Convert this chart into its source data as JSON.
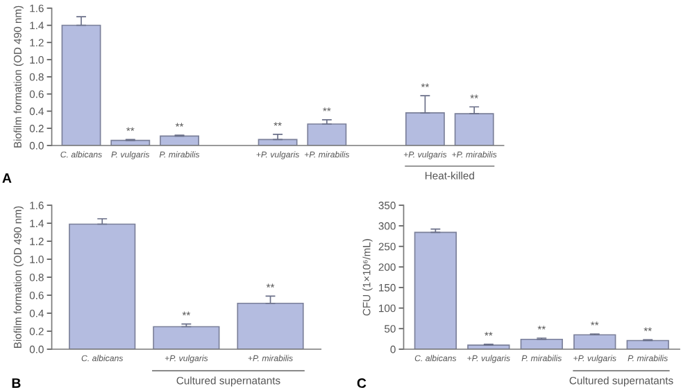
{
  "chart_data": [
    {
      "type": "bar",
      "ylabel": "Biofilm formation (OD 490 nm)",
      "categories": [
        "C. albicans",
        "P. vulgaris",
        "P. mirabilis",
        null,
        "+P. vulgaris",
        "+P. mirabilis",
        null,
        "+P. vulgaris",
        "+P. mirabilis"
      ],
      "color": "#b4bce0",
      "values": [
        1.4,
        0.06,
        0.11,
        null,
        0.07,
        0.25,
        null,
        0.38,
        0.37
      ],
      "errors": [
        0.1,
        0.01,
        0.01,
        null,
        0.06,
        0.05,
        null,
        0.2,
        0.08
      ],
      "value_labels": [
        null,
        "**",
        "**",
        null,
        "**",
        "**",
        null,
        "**",
        "**"
      ],
      "ylim": [
        0,
        1.6
      ],
      "yticks": [
        {
          "value": 0,
          "label": "0.0"
        },
        {
          "value": 0.2,
          "label": "0.2"
        },
        {
          "value": 0.4,
          "label": "0.4"
        },
        {
          "value": 0.6,
          "label": "0.6"
        },
        {
          "value": 0.8,
          "label": "0.8"
        },
        {
          "value": 1.0,
          "label": "1.0"
        },
        {
          "value": 1.2,
          "label": "1.2"
        },
        {
          "value": 1.4,
          "label": "1.4"
        },
        {
          "value": 1.6,
          "label": "1.6"
        }
      ],
      "grid": false,
      "legend": false,
      "annotations": [
        "A",
        "Heat-killed"
      ]
    },
    {
      "type": "bar",
      "ylabel": "Biofilm formation (OD 490 nm)",
      "categories": [
        "C. albicans",
        "+P. vulgaris",
        "+P. mirabilis"
      ],
      "color": "#b4bce0",
      "values": [
        1.39,
        0.25,
        0.51
      ],
      "errors": [
        0.06,
        0.03,
        0.08
      ],
      "value_labels": [
        null,
        "**",
        "**"
      ],
      "ylim": [
        0,
        1.6
      ],
      "yticks": [
        {
          "value": 0,
          "label": "0.0"
        },
        {
          "value": 0.2,
          "label": "0.2"
        },
        {
          "value": 0.4,
          "label": "0.4"
        },
        {
          "value": 0.6,
          "label": "0.6"
        },
        {
          "value": 0.8,
          "label": "0.8"
        },
        {
          "value": 1.0,
          "label": "1.0"
        },
        {
          "value": 1.2,
          "label": "1.2"
        },
        {
          "value": 1.4,
          "label": "1.4"
        },
        {
          "value": 1.6,
          "label": "1.6"
        }
      ],
      "grid": false,
      "legend": false,
      "annotations": [
        "B",
        "Cultured supernatants"
      ]
    },
    {
      "type": "bar",
      "ylabel": "CFU (1×10⁶/mL)",
      "categories": [
        "C. albicans",
        "+P. vulgaris",
        "P. mirabilis",
        "+P. vulgaris",
        "P. mirabilis"
      ],
      "color": "#b4bce0",
      "values": [
        284,
        10,
        24,
        35,
        21
      ],
      "errors": [
        8,
        2,
        3,
        2,
        2
      ],
      "value_labels": [
        null,
        "**",
        "**",
        "**",
        "**"
      ],
      "ylim": [
        0,
        350
      ],
      "yticks": [
        0,
        50,
        100,
        150,
        200,
        250,
        300,
        350
      ],
      "grid": false,
      "legend": false,
      "annotations": [
        "C",
        "Cultured supernatants"
      ]
    }
  ]
}
